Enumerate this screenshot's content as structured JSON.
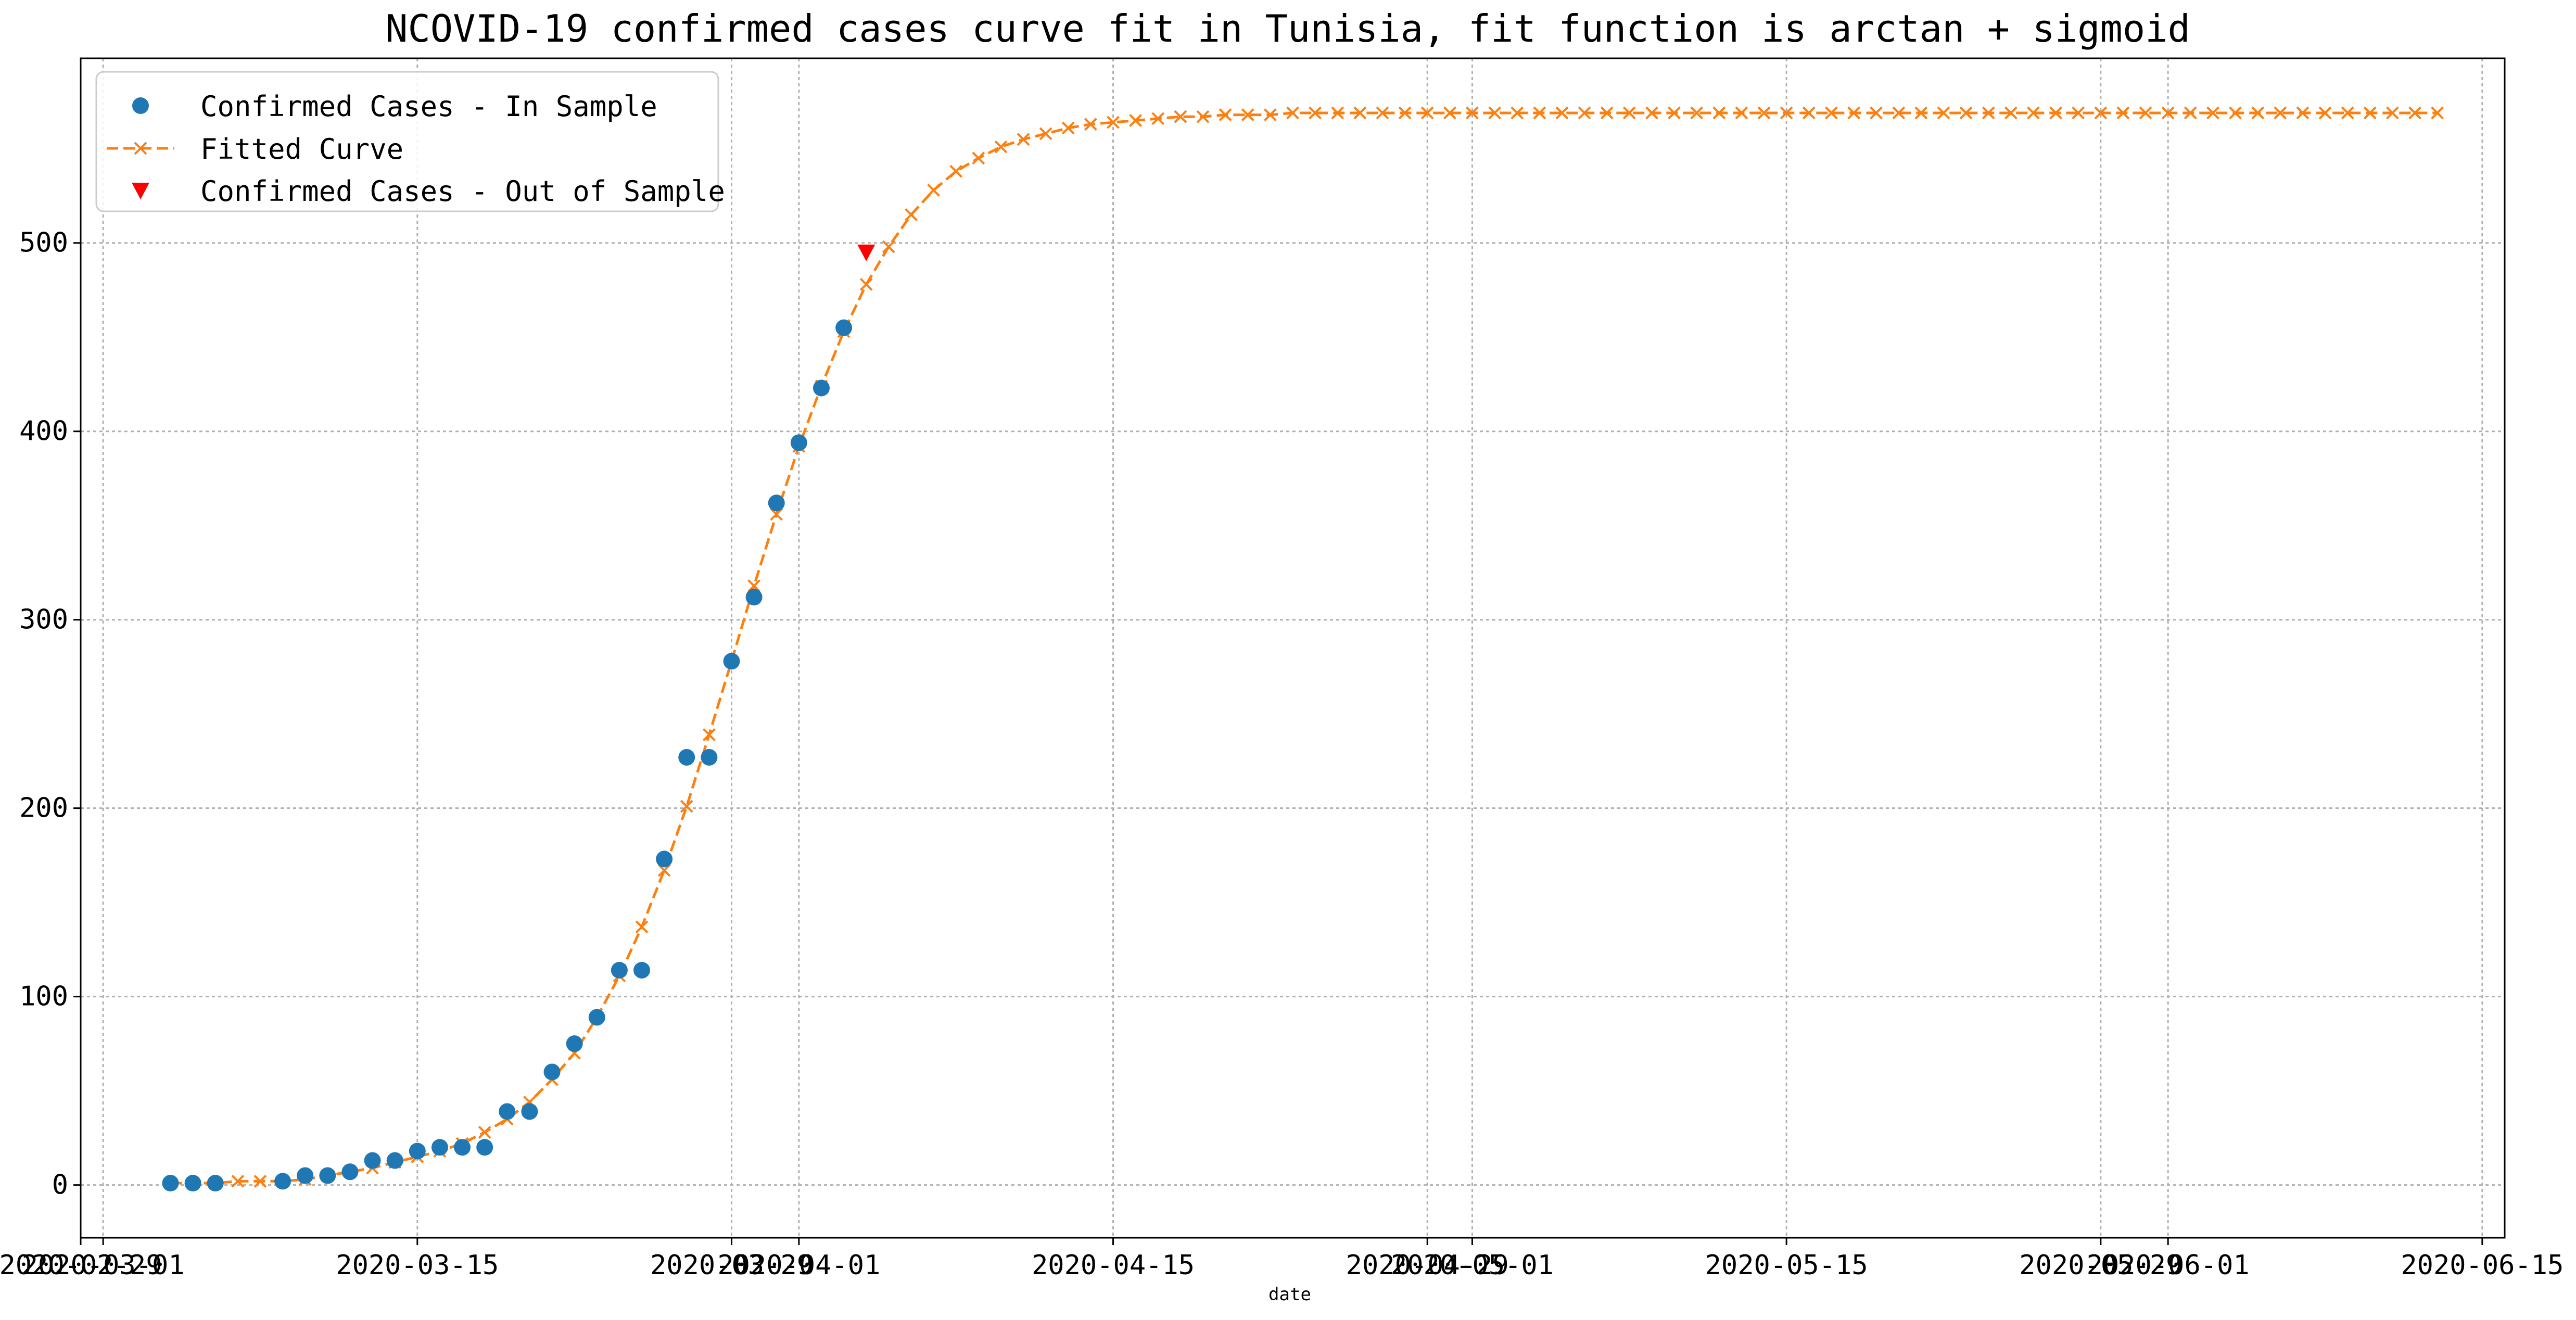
{
  "chart_data": {
    "type": "scatter",
    "title": "NCOVID-19 confirmed cases curve fit in Tunisia, fit function is arctan + sigmoid",
    "xlabel": "date",
    "ylabel": "",
    "x_axis": "date",
    "xlim": [
      "2020-02-29",
      "2020-06-16"
    ],
    "ylim": [
      -28,
      598
    ],
    "yticks": [
      0,
      100,
      200,
      300,
      400,
      500
    ],
    "xticks_weekly": [
      "2020-03-01",
      "2020-03-15",
      "2020-04-01",
      "2020-04-15",
      "2020-05-01",
      "2020-05-15",
      "2020-06-01",
      "2020-06-15"
    ],
    "xticks_overlay": [
      "2020-02-29",
      "2020-03-29",
      "2020-04-29",
      "2020-05-29"
    ],
    "grid": true,
    "legend_position": "top-left",
    "series": [
      {
        "name": "Confirmed Cases - In Sample",
        "marker": "circle",
        "color": "#1f77b4",
        "points": [
          [
            "2020-03-04",
            1
          ],
          [
            "2020-03-05",
            1
          ],
          [
            "2020-03-06",
            1
          ],
          [
            "2020-03-09",
            2
          ],
          [
            "2020-03-10",
            5
          ],
          [
            "2020-03-11",
            5
          ],
          [
            "2020-03-12",
            7
          ],
          [
            "2020-03-13",
            13
          ],
          [
            "2020-03-14",
            13
          ],
          [
            "2020-03-15",
            18
          ],
          [
            "2020-03-16",
            20
          ],
          [
            "2020-03-17",
            20
          ],
          [
            "2020-03-18",
            20
          ],
          [
            "2020-03-19",
            39
          ],
          [
            "2020-03-20",
            39
          ],
          [
            "2020-03-21",
            60
          ],
          [
            "2020-03-22",
            75
          ],
          [
            "2020-03-23",
            89
          ],
          [
            "2020-03-24",
            114
          ],
          [
            "2020-03-25",
            114
          ],
          [
            "2020-03-26",
            173
          ],
          [
            "2020-03-27",
            227
          ],
          [
            "2020-03-28",
            227
          ],
          [
            "2020-03-29",
            278
          ],
          [
            "2020-03-30",
            312
          ],
          [
            "2020-03-31",
            362
          ],
          [
            "2020-04-01",
            394
          ],
          [
            "2020-04-02",
            423
          ],
          [
            "2020-04-03",
            455
          ]
        ]
      },
      {
        "name": "Fitted Curve",
        "marker": "x",
        "linestyle": "dashed",
        "color": "#ff7f0e",
        "start_date": "2020-03-04",
        "values": [
          1,
          1,
          1,
          2,
          2,
          2,
          3,
          5,
          7,
          9,
          12,
          15,
          18,
          22,
          28,
          35,
          44,
          56,
          70,
          89,
          111,
          137,
          167,
          201,
          239,
          278,
          318,
          356,
          392,
          424,
          453,
          478,
          498,
          515,
          528,
          538,
          545,
          551,
          555,
          558,
          561,
          563,
          564,
          565,
          566,
          567,
          567,
          568,
          568,
          568,
          569,
          569,
          569,
          569,
          569,
          569,
          569,
          569,
          569,
          569,
          569,
          569,
          569,
          569,
          569,
          569,
          569,
          569,
          569,
          569,
          569,
          569,
          569,
          569,
          569,
          569,
          569,
          569,
          569,
          569,
          569,
          569,
          569,
          569,
          569,
          569,
          569,
          569,
          569,
          569,
          569,
          569,
          569,
          569,
          569,
          569,
          569,
          569,
          569,
          569,
          569,
          569
        ]
      },
      {
        "name": "Confirmed Cases - Out of Sample",
        "marker": "triangle-down",
        "color": "#ff0000",
        "points": [
          [
            "2020-04-04",
            495
          ]
        ]
      }
    ]
  }
}
